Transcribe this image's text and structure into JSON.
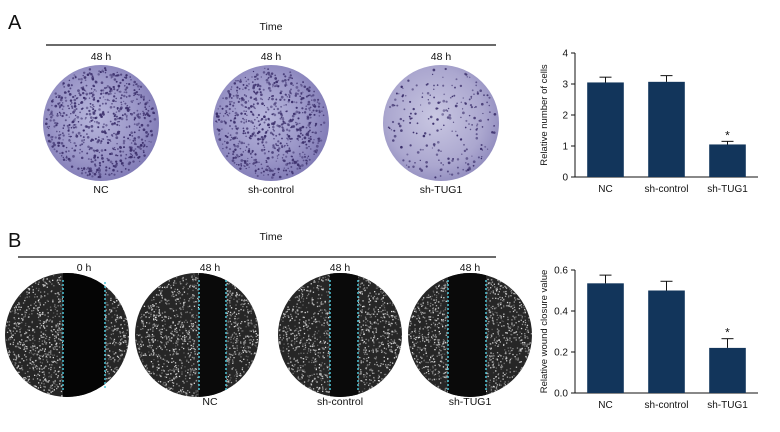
{
  "panels": [
    {
      "letter": "A",
      "time_label": "Time",
      "images": [
        {
          "time": "48 h",
          "group": "NC"
        },
        {
          "time": "48 h",
          "group": "sh-control"
        },
        {
          "time": "48 h",
          "group": "sh-TUG1"
        }
      ]
    },
    {
      "letter": "B",
      "time_label": "Time",
      "images": [
        {
          "time": "0 h",
          "group": ""
        },
        {
          "time": "48 h",
          "group": "NC"
        },
        {
          "time": "48 h",
          "group": "sh-control"
        },
        {
          "time": "48 h",
          "group": "sh-TUG1"
        }
      ]
    }
  ],
  "colors": {
    "bar": "#12355b",
    "dish": "#8a86bd",
    "stain": "#3b2f6b",
    "wound_line": "#4fc4d6"
  },
  "chart_data": [
    {
      "type": "bar",
      "title": "",
      "xlabel": "",
      "ylabel": "Relative number of cells",
      "categories": [
        "NC",
        "sh-control",
        "sh-TUG1"
      ],
      "values": [
        3.05,
        3.07,
        1.05
      ],
      "errors": [
        0.17,
        0.2,
        0.1
      ],
      "significance": [
        "",
        "",
        "*"
      ],
      "ylim": [
        0,
        4
      ],
      "yticks": [
        0,
        1,
        2,
        3,
        4
      ],
      "grid": false
    },
    {
      "type": "bar",
      "title": "",
      "xlabel": "",
      "ylabel": "Relative wound closure value",
      "categories": [
        "NC",
        "sh-control",
        "sh-TUG1"
      ],
      "values": [
        0.535,
        0.5,
        0.22
      ],
      "errors": [
        0.04,
        0.045,
        0.045
      ],
      "significance": [
        "",
        "",
        "*"
      ],
      "ylim": [
        0,
        0.6
      ],
      "yticks": [
        0.0,
        0.2,
        0.4,
        0.6
      ],
      "grid": false
    }
  ]
}
